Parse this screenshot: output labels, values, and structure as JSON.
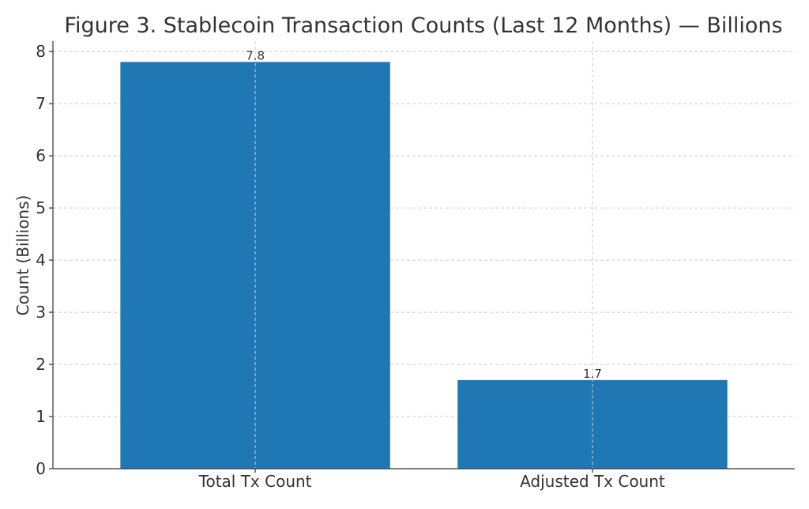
{
  "chart_data": {
    "type": "bar",
    "title": "Figure 3. Stablecoin Transaction Counts (Last 12 Months) — Billions",
    "xlabel": "",
    "ylabel": "Count (Billions)",
    "categories": [
      "Total Tx Count",
      "Adjusted Tx Count"
    ],
    "values": [
      7.8,
      1.7
    ],
    "data_labels": [
      "7.8",
      "1.7"
    ],
    "ylim": [
      0,
      8.2
    ],
    "yticks": [
      0,
      1,
      2,
      3,
      4,
      5,
      6,
      7,
      8
    ],
    "grid": true,
    "bar_color": "#1f77b4",
    "grid_color": "#cccccc"
  }
}
